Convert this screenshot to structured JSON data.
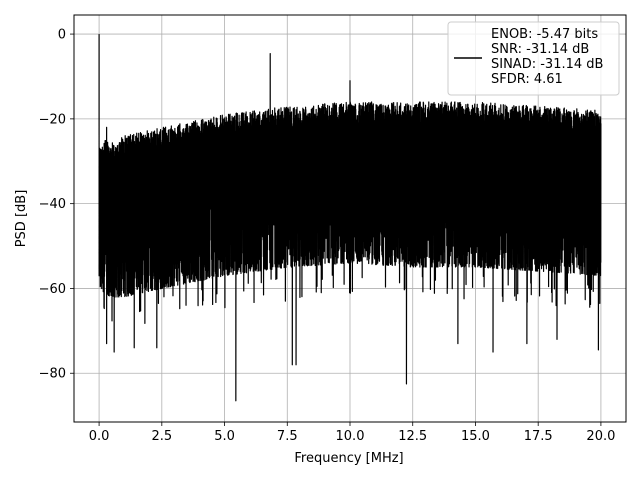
{
  "chart_data": {
    "type": "line",
    "xlabel": "Frequency [MHz]",
    "ylabel": "PSD [dB]",
    "xlim": [
      -1.0,
      21.0
    ],
    "ylim": [
      -91.5,
      4.5
    ],
    "xticks": [
      0.0,
      2.5,
      5.0,
      7.5,
      10.0,
      12.5,
      15.0,
      17.5,
      20.0
    ],
    "xtick_labels": [
      "0.0",
      "2.5",
      "5.0",
      "7.5",
      "10.0",
      "12.5",
      "15.0",
      "17.5",
      "20.0"
    ],
    "yticks": [
      0,
      -20,
      -40,
      -60,
      -80
    ],
    "ytick_labels": [
      "0",
      "−20",
      "−40",
      "−60",
      "−80"
    ],
    "grid": true,
    "legend_position": "top-right",
    "series": [
      {
        "name": "ENOB: -5.47 bits\nSNR: -31.14 dB\nSINAD: -31.14 dB\nSFDR: 4.61",
        "color": "#000000",
        "noise_envelope": {
          "x": [
            0.0,
            0.2,
            0.5,
            1.0,
            2.5,
            5.0,
            7.5,
            10.0,
            12.5,
            15.0,
            17.5,
            20.0
          ],
          "upper": [
            -26,
            -25,
            -25,
            -24,
            -22,
            -19,
            -17,
            -16,
            -16,
            -16,
            -17,
            -18
          ],
          "lower": [
            -62,
            -63,
            -64,
            -64,
            -62,
            -59,
            -57,
            -56,
            -57,
            -57,
            -58,
            -59
          ]
        },
        "peaks": [
          {
            "x": 0.0,
            "y": 0.0
          },
          {
            "x": 6.82,
            "y": -4.6
          },
          {
            "x": 10.0,
            "y": -11.0
          },
          {
            "x": 0.3,
            "y": -22.0
          }
        ],
        "dips": [
          {
            "x": 0.0,
            "y": -57.0
          },
          {
            "x": 0.3,
            "y": -73.0
          },
          {
            "x": 0.6,
            "y": -75.0
          },
          {
            "x": 1.4,
            "y": -74.0
          },
          {
            "x": 2.3,
            "y": -74.0
          },
          {
            "x": 5.45,
            "y": -86.5
          },
          {
            "x": 7.7,
            "y": -78.0
          },
          {
            "x": 7.85,
            "y": -78.0
          },
          {
            "x": 12.25,
            "y": -82.5
          },
          {
            "x": 14.3,
            "y": -73.0
          },
          {
            "x": 15.7,
            "y": -75.0
          },
          {
            "x": 17.05,
            "y": -73.0
          },
          {
            "x": 18.25,
            "y": -72.0
          },
          {
            "x": 19.9,
            "y": -74.5
          }
        ]
      }
    ]
  }
}
